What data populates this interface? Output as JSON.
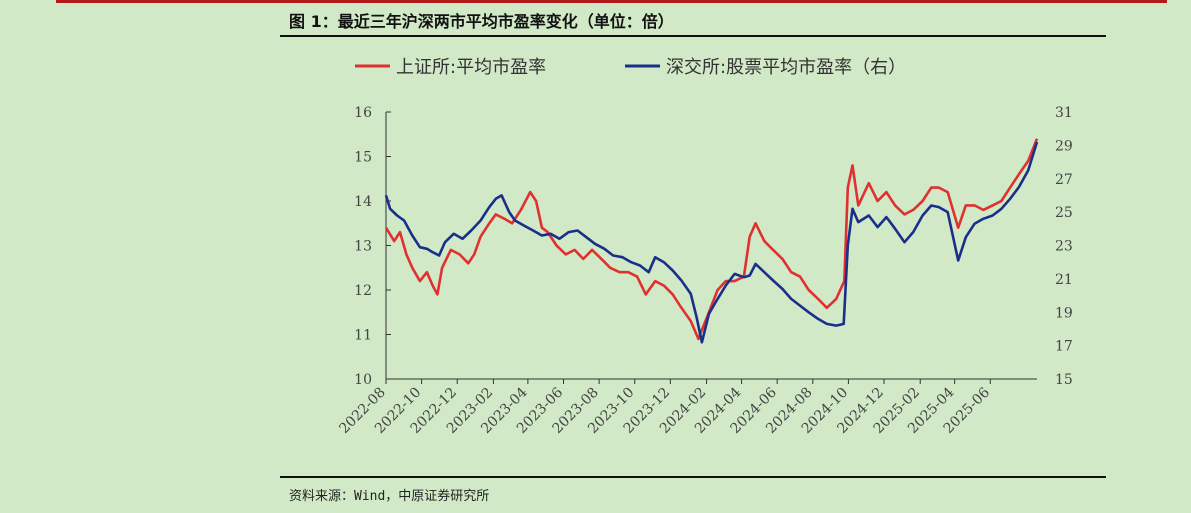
{
  "figure": {
    "title": "图 1：最近三年沪深两市平均市盈率变化（单位：倍）",
    "source": "资料来源：Wind，中原证券研究所"
  },
  "chart_data": {
    "type": "line",
    "title": "图 1：最近三年沪深两市平均市盈率变化（单位：倍）",
    "xlabel": "",
    "ylabel": "",
    "ylim": [
      10,
      16
    ],
    "y2lim": [
      15,
      31
    ],
    "xlim": [
      "2022-08-01",
      "2025-08-20"
    ],
    "x_ticks": [
      "2022-08",
      "2022-10",
      "2022-12",
      "2023-02",
      "2023-04",
      "2023-06",
      "2023-08",
      "2023-10",
      "2023-12",
      "2024-02",
      "2024-04",
      "2024-06",
      "2024-08",
      "2024-10",
      "2024-12",
      "2025-02",
      "2025-04",
      "2025-06"
    ],
    "y_ticks": [
      10,
      11,
      12,
      13,
      14,
      15,
      16
    ],
    "y2_ticks": [
      15,
      17,
      19,
      21,
      23,
      25,
      27,
      29,
      31
    ],
    "grid": false,
    "legend": "top",
    "series": [
      {
        "name": "上证所:平均市盈率",
        "axis": "left",
        "color": "#e03030",
        "points": [
          [
            "2022-08-01",
            13.4
          ],
          [
            "2022-08-15",
            13.1
          ],
          [
            "2022-08-25",
            13.3
          ],
          [
            "2022-09-05",
            12.8
          ],
          [
            "2022-09-15",
            12.5
          ],
          [
            "2022-09-28",
            12.2
          ],
          [
            "2022-10-10",
            12.4
          ],
          [
            "2022-10-20",
            12.1
          ],
          [
            "2022-10-28",
            11.9
          ],
          [
            "2022-11-05",
            12.5
          ],
          [
            "2022-11-20",
            12.9
          ],
          [
            "2022-12-05",
            12.8
          ],
          [
            "2022-12-20",
            12.6
          ],
          [
            "2022-12-30",
            12.8
          ],
          [
            "2023-01-10",
            13.2
          ],
          [
            "2023-01-25",
            13.5
          ],
          [
            "2023-02-05",
            13.7
          ],
          [
            "2023-02-20",
            13.6
          ],
          [
            "2023-03-05",
            13.5
          ],
          [
            "2023-03-20",
            13.8
          ],
          [
            "2023-04-05",
            14.2
          ],
          [
            "2023-04-15",
            14.0
          ],
          [
            "2023-04-25",
            13.4
          ],
          [
            "2023-05-05",
            13.3
          ],
          [
            "2023-05-20",
            13.0
          ],
          [
            "2023-06-05",
            12.8
          ],
          [
            "2023-06-20",
            12.9
          ],
          [
            "2023-07-05",
            12.7
          ],
          [
            "2023-07-20",
            12.9
          ],
          [
            "2023-08-05",
            12.7
          ],
          [
            "2023-08-20",
            12.5
          ],
          [
            "2023-09-05",
            12.4
          ],
          [
            "2023-09-20",
            12.4
          ],
          [
            "2023-10-05",
            12.3
          ],
          [
            "2023-10-20",
            11.9
          ],
          [
            "2023-11-05",
            12.2
          ],
          [
            "2023-11-20",
            12.1
          ],
          [
            "2023-12-05",
            11.9
          ],
          [
            "2023-12-20",
            11.6
          ],
          [
            "2024-01-05",
            11.3
          ],
          [
            "2024-01-18",
            10.9
          ],
          [
            "2024-02-05",
            11.5
          ],
          [
            "2024-02-20",
            12.0
          ],
          [
            "2024-03-05",
            12.2
          ],
          [
            "2024-03-20",
            12.2
          ],
          [
            "2024-04-05",
            12.3
          ],
          [
            "2024-04-15",
            13.2
          ],
          [
            "2024-04-25",
            13.5
          ],
          [
            "2024-05-10",
            13.1
          ],
          [
            "2024-05-25",
            12.9
          ],
          [
            "2024-06-10",
            12.7
          ],
          [
            "2024-06-25",
            12.4
          ],
          [
            "2024-07-10",
            12.3
          ],
          [
            "2024-07-25",
            12.0
          ],
          [
            "2024-08-10",
            11.8
          ],
          [
            "2024-08-25",
            11.6
          ],
          [
            "2024-09-10",
            11.8
          ],
          [
            "2024-09-24",
            12.2
          ],
          [
            "2024-09-30",
            14.3
          ],
          [
            "2024-10-08",
            14.8
          ],
          [
            "2024-10-18",
            13.9
          ],
          [
            "2024-11-05",
            14.4
          ],
          [
            "2024-11-20",
            14.0
          ],
          [
            "2024-12-05",
            14.2
          ],
          [
            "2024-12-20",
            13.9
          ],
          [
            "2025-01-05",
            13.7
          ],
          [
            "2025-01-20",
            13.8
          ],
          [
            "2025-02-05",
            14.0
          ],
          [
            "2025-02-20",
            14.3
          ],
          [
            "2025-03-05",
            14.3
          ],
          [
            "2025-03-20",
            14.2
          ],
          [
            "2025-04-07",
            13.4
          ],
          [
            "2025-04-20",
            13.9
          ],
          [
            "2025-05-05",
            13.9
          ],
          [
            "2025-05-20",
            13.8
          ],
          [
            "2025-06-05",
            13.9
          ],
          [
            "2025-06-20",
            14.0
          ],
          [
            "2025-07-05",
            14.3
          ],
          [
            "2025-07-20",
            14.6
          ],
          [
            "2025-08-05",
            14.9
          ],
          [
            "2025-08-20",
            15.4
          ]
        ]
      },
      {
        "name": "深交所:股票平均市盈率（右）",
        "axis": "right",
        "color": "#1a2f8a",
        "points": [
          [
            "2022-08-01",
            26.0
          ],
          [
            "2022-08-08",
            25.2
          ],
          [
            "2022-08-20",
            24.8
          ],
          [
            "2022-09-01",
            24.5
          ],
          [
            "2022-09-15",
            23.6
          ],
          [
            "2022-09-28",
            22.9
          ],
          [
            "2022-10-10",
            22.8
          ],
          [
            "2022-10-20",
            22.6
          ],
          [
            "2022-10-31",
            22.4
          ],
          [
            "2022-11-10",
            23.2
          ],
          [
            "2022-11-25",
            23.7
          ],
          [
            "2022-12-10",
            23.4
          ],
          [
            "2022-12-25",
            23.9
          ],
          [
            "2023-01-10",
            24.5
          ],
          [
            "2023-01-25",
            25.3
          ],
          [
            "2023-02-05",
            25.8
          ],
          [
            "2023-02-15",
            26.0
          ],
          [
            "2023-02-28",
            25.0
          ],
          [
            "2023-03-10",
            24.5
          ],
          [
            "2023-03-25",
            24.2
          ],
          [
            "2023-04-10",
            23.9
          ],
          [
            "2023-04-25",
            23.6
          ],
          [
            "2023-05-10",
            23.7
          ],
          [
            "2023-05-25",
            23.4
          ],
          [
            "2023-06-10",
            23.8
          ],
          [
            "2023-06-25",
            23.9
          ],
          [
            "2023-07-10",
            23.5
          ],
          [
            "2023-07-25",
            23.1
          ],
          [
            "2023-08-10",
            22.8
          ],
          [
            "2023-08-25",
            22.4
          ],
          [
            "2023-09-10",
            22.3
          ],
          [
            "2023-09-25",
            22.0
          ],
          [
            "2023-10-10",
            21.8
          ],
          [
            "2023-10-25",
            21.4
          ],
          [
            "2023-11-05",
            22.3
          ],
          [
            "2023-11-20",
            22.0
          ],
          [
            "2023-12-05",
            21.5
          ],
          [
            "2023-12-20",
            20.9
          ],
          [
            "2024-01-05",
            20.1
          ],
          [
            "2024-01-15",
            18.7
          ],
          [
            "2024-01-24",
            17.2
          ],
          [
            "2024-02-05",
            18.9
          ],
          [
            "2024-02-20",
            19.8
          ],
          [
            "2024-03-05",
            20.6
          ],
          [
            "2024-03-20",
            21.3
          ],
          [
            "2024-04-05",
            21.1
          ],
          [
            "2024-04-15",
            21.2
          ],
          [
            "2024-04-25",
            21.9
          ],
          [
            "2024-05-10",
            21.4
          ],
          [
            "2024-05-25",
            20.9
          ],
          [
            "2024-06-10",
            20.4
          ],
          [
            "2024-06-25",
            19.8
          ],
          [
            "2024-07-10",
            19.4
          ],
          [
            "2024-07-25",
            19.0
          ],
          [
            "2024-08-10",
            18.6
          ],
          [
            "2024-08-25",
            18.3
          ],
          [
            "2024-09-10",
            18.2
          ],
          [
            "2024-09-23",
            18.3
          ],
          [
            "2024-09-30",
            23.0
          ],
          [
            "2024-10-08",
            25.2
          ],
          [
            "2024-10-18",
            24.4
          ],
          [
            "2024-11-05",
            24.8
          ],
          [
            "2024-11-20",
            24.1
          ],
          [
            "2024-12-05",
            24.7
          ],
          [
            "2024-12-20",
            24.0
          ],
          [
            "2025-01-05",
            23.2
          ],
          [
            "2025-01-20",
            23.8
          ],
          [
            "2025-02-05",
            24.8
          ],
          [
            "2025-02-20",
            25.4
          ],
          [
            "2025-03-05",
            25.3
          ],
          [
            "2025-03-20",
            25.0
          ],
          [
            "2025-04-07",
            22.1
          ],
          [
            "2025-04-20",
            23.5
          ],
          [
            "2025-05-05",
            24.3
          ],
          [
            "2025-05-20",
            24.6
          ],
          [
            "2025-06-05",
            24.8
          ],
          [
            "2025-06-20",
            25.2
          ],
          [
            "2025-07-05",
            25.8
          ],
          [
            "2025-07-20",
            26.5
          ],
          [
            "2025-08-05",
            27.5
          ],
          [
            "2025-08-20",
            29.2
          ]
        ]
      }
    ]
  }
}
